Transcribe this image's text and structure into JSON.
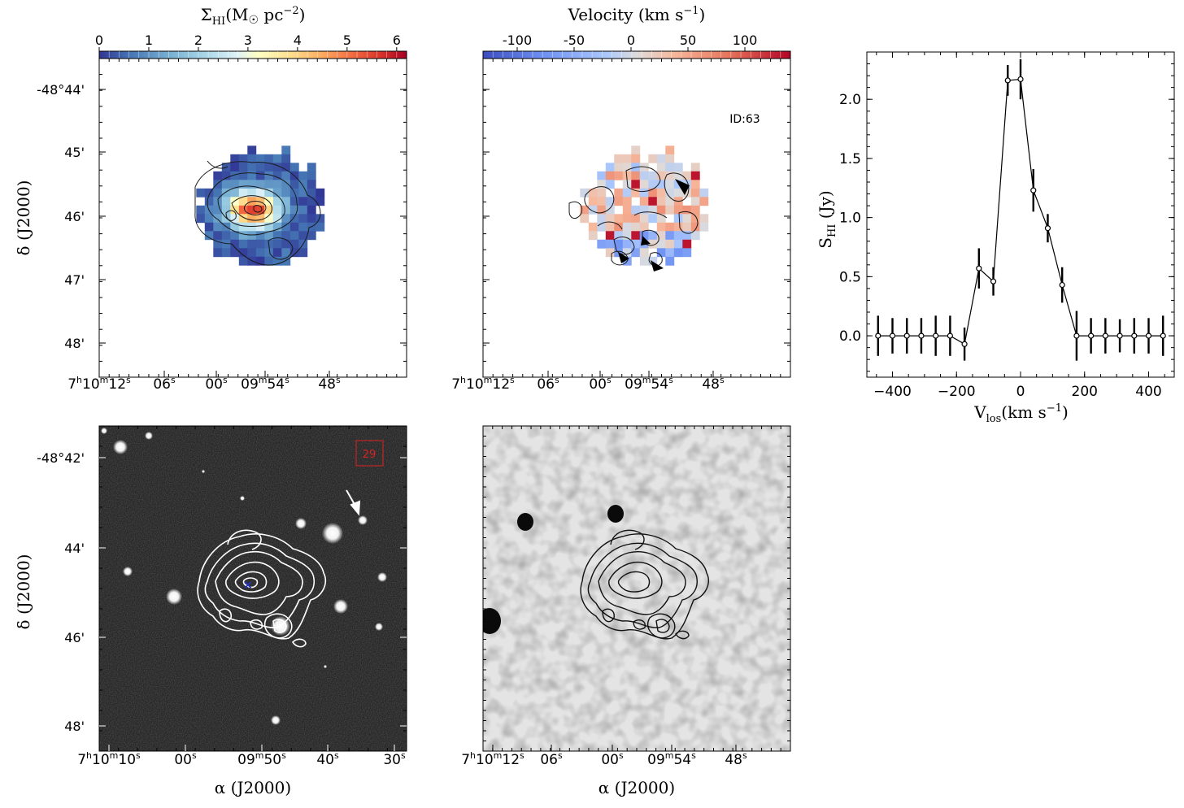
{
  "colors": {
    "axis": "#000000",
    "contour_light": "#ffffff",
    "contour_dark": "#000000",
    "id_box": "#dd2222",
    "center_marker": "#2233cc",
    "arrow": "#ffffff"
  },
  "panels": {
    "mom0": {
      "colorbar_label_main": "Σ",
      "colorbar_label_sub": "HI",
      "colorbar_label_rest": "(M",
      "colorbar_label_sun": "☉",
      "colorbar_label_unit": " pc",
      "colorbar_label_exp": "−2",
      "colorbar_label_close": ")",
      "colorbar_ticks": [
        "0",
        "1",
        "2",
        "3",
        "4",
        "5",
        "6"
      ],
      "colormap": "RdYlBu_r",
      "ytick_labels": [
        "-48°44'",
        "45'",
        "46'",
        "47'",
        "48'"
      ],
      "ylabel": "δ (J2000)"
    },
    "mom1": {
      "colorbar_label": "Velocity (km s",
      "colorbar_label_exp": "−1",
      "colorbar_label_close": ")",
      "colorbar_ticks": [
        "-100",
        "-50",
        "0",
        "50",
        "100"
      ],
      "colormap": "coolwarm",
      "id_label": "ID:63"
    },
    "top_xticks": [
      {
        "h": "7",
        "m": "10",
        "s": "12"
      },
      {
        "s": "06"
      },
      {
        "s": "00"
      },
      {
        "h": "",
        "m": "09",
        "s": "54",
        "pre": "09"
      },
      {
        "s": "48"
      }
    ],
    "optical": {
      "id_box_label": "29",
      "ytick_labels": [
        "-48°42'",
        "44'",
        "46'",
        "48'"
      ],
      "xtick_labels": [
        {
          "h": "7",
          "m": "10",
          "s": "10"
        },
        {
          "s": "00"
        },
        {
          "m": "09",
          "s": "50"
        },
        {
          "s": "40"
        },
        {
          "s": "30"
        }
      ],
      "xlabel": "α (J2000)",
      "ylabel": "δ (J2000)"
    },
    "radio": {
      "xtick_labels": [
        {
          "h": "7",
          "m": "10",
          "s": "12"
        },
        {
          "s": "06"
        },
        {
          "s": "00"
        },
        {
          "m": "09",
          "s": "54"
        },
        {
          "s": "48"
        }
      ],
      "xlabel": "α (J2000)"
    }
  },
  "chart_data": [
    {
      "type": "heatmap",
      "title": "",
      "colorbar_label": "ΣHI(M☉ pc−2)",
      "colorbar_range": [
        0,
        6.2
      ],
      "xlabel": "",
      "ylabel": "δ (J2000)"
    },
    {
      "type": "heatmap",
      "title": "",
      "colorbar_label": "Velocity (km s−1)",
      "colorbar_range": [
        -130,
        140
      ],
      "annotation": "ID:63"
    },
    {
      "type": "line",
      "xlabel": "Vlos(km s−1)",
      "ylabel": "SHI (Jy)",
      "xlim": [
        -480,
        480
      ],
      "ylim": [
        -0.35,
        2.4
      ],
      "xticks": [
        -400,
        -200,
        0,
        200,
        400
      ],
      "yticks": [
        0.0,
        0.5,
        1.0,
        1.5,
        2.0
      ],
      "ytick_labels": [
        "0.0",
        "0.5",
        "1.0",
        "1.5",
        "2.0"
      ],
      "xtick_labels": [
        "−400",
        "−200",
        "0",
        "200",
        "400"
      ],
      "x": [
        -445,
        -400,
        -355,
        -310,
        -265,
        -220,
        -175,
        -130,
        -85,
        -40,
        0,
        40,
        85,
        130,
        175,
        220,
        265,
        310,
        355,
        400,
        445
      ],
      "y": [
        0.0,
        0.0,
        0.0,
        0.0,
        0.0,
        0.0,
        -0.07,
        0.57,
        0.46,
        2.16,
        2.17,
        1.23,
        0.91,
        0.43,
        0.0,
        0.0,
        0.0,
        0.0,
        0.0,
        0.0,
        0.0
      ],
      "yerr": [
        0.17,
        0.15,
        0.15,
        0.15,
        0.17,
        0.17,
        0.14,
        0.17,
        0.12,
        0.13,
        0.17,
        0.18,
        0.12,
        0.15,
        0.21,
        0.15,
        0.15,
        0.14,
        0.15,
        0.15,
        0.17
      ],
      "grid": false
    },
    {
      "type": "heatmap",
      "description_note": "optical image with white HI contours",
      "xlabel": "α (J2000)",
      "ylabel": "δ (J2000)",
      "annotation": "29"
    },
    {
      "type": "heatmap",
      "description_note": "radio continuum image with black HI contours",
      "xlabel": "α (J2000)"
    }
  ],
  "labels": {
    "spec_xlabel_main": "V",
    "spec_xlabel_sub": "los",
    "spec_xlabel_rest": "(km s",
    "spec_xlabel_exp": "−1",
    "spec_xlabel_close": ")",
    "spec_ylabel_main": "S",
    "spec_ylabel_sub": "HI",
    "spec_ylabel_rest": " (Jy)"
  }
}
